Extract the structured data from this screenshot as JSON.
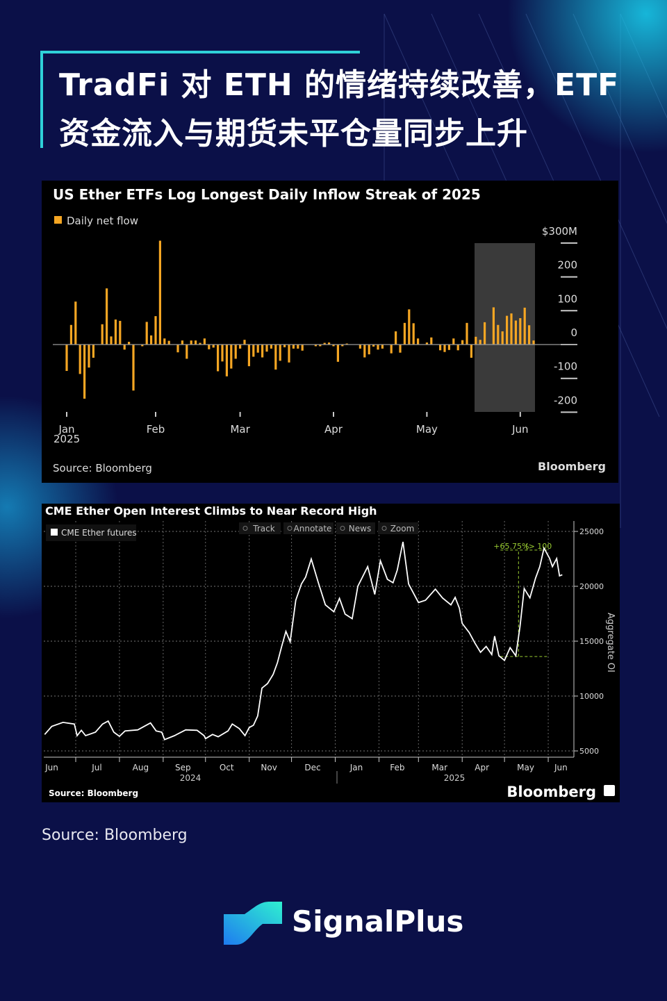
{
  "title": {
    "line1": "TradFi 对 ETH 的情绪持续改善，ETF",
    "line2": "资金流入与期货未平仓量同步上升"
  },
  "colors": {
    "background": "#0b1048",
    "accent": "#2fd1d8",
    "bar": "#f5a623",
    "line": "#ffffff",
    "annotation": "#9acd32",
    "highlight": "#3a3a3a"
  },
  "chart_data": [
    {
      "type": "bar",
      "title": "US Ether ETFs Log Longest Daily Inflow Streak of 2025",
      "legend": "Daily net flow",
      "unit_label": "$300M",
      "y_ticks": [
        "$300M",
        "200",
        "100",
        "0",
        "-100",
        "-200"
      ],
      "ylim": [
        -200,
        300
      ],
      "x_ticks": [
        "Jan",
        "Feb",
        "Mar",
        "Apr",
        "May",
        "Jun"
      ],
      "x_year": "2025",
      "values": [
        -78,
        58,
        127,
        -87,
        -160,
        -68,
        -39,
        1,
        60,
        166,
        24,
        74,
        70,
        -15,
        8,
        -136,
        0,
        -5,
        67,
        27,
        84,
        307,
        18,
        11,
        0,
        -23,
        12,
        -42,
        12,
        12,
        5,
        18,
        -14,
        -9,
        -79,
        -50,
        -94,
        -71,
        -42,
        -12,
        14,
        -64,
        -36,
        -24,
        -38,
        -21,
        -12,
        -74,
        -48,
        -8,
        -53,
        -12,
        -12,
        -18,
        0,
        0,
        -5,
        -5,
        5,
        6,
        -5,
        -51,
        -5,
        3,
        -1,
        0,
        -12,
        -38,
        -29,
        -6,
        -15,
        -12,
        0,
        -26,
        39,
        -24,
        64,
        104,
        63,
        18,
        0,
        6,
        21,
        0,
        -17,
        -22,
        -16,
        18,
        -17,
        13,
        64,
        -39,
        23,
        14,
        66,
        0,
        110,
        58,
        39,
        85,
        92,
        71,
        78,
        109,
        57,
        12
      ],
      "highlight": "longest daily inflow streak (final bars, late May – early June 2025)",
      "source": "Source: Bloomberg",
      "brand": "Bloomberg"
    },
    {
      "type": "line",
      "title": "CME Ether Open Interest Climbs to Near Record High",
      "legend": "CME Ether futures",
      "ylabel": "Aggregate OI",
      "ylim": [
        4000,
        26000
      ],
      "y_ticks": [
        "25000",
        "20000",
        "15000",
        "10000",
        "5000"
      ],
      "x_ticks": [
        "Jun",
        "Jul",
        "Aug",
        "Sep",
        "Oct",
        "Nov",
        "Dec",
        "Jan",
        "Feb",
        "Mar",
        "Apr",
        "May",
        "Jun"
      ],
      "x_years": [
        "2024",
        "2025"
      ],
      "grid": true,
      "points": [
        [
          "2024-06-09",
          6500
        ],
        [
          "2024-06-14",
          7240
        ],
        [
          "2024-06-22",
          7600
        ],
        [
          "2024-06-30",
          7450
        ],
        [
          "2024-07-02",
          6390
        ],
        [
          "2024-07-05",
          6880
        ],
        [
          "2024-07-08",
          6390
        ],
        [
          "2024-07-15",
          6710
        ],
        [
          "2024-07-20",
          7450
        ],
        [
          "2024-07-24",
          7720
        ],
        [
          "2024-07-28",
          6710
        ],
        [
          "2024-08-01",
          6330
        ],
        [
          "2024-08-05",
          6820
        ],
        [
          "2024-08-14",
          6920
        ],
        [
          "2024-08-23",
          7550
        ],
        [
          "2024-08-27",
          6820
        ],
        [
          "2024-08-31",
          6710
        ],
        [
          "2024-09-02",
          6030
        ],
        [
          "2024-09-09",
          6390
        ],
        [
          "2024-09-17",
          6920
        ],
        [
          "2024-09-25",
          6880
        ],
        [
          "2024-09-30",
          6390
        ],
        [
          "2024-10-01",
          6120
        ],
        [
          "2024-10-06",
          6500
        ],
        [
          "2024-10-10",
          6290
        ],
        [
          "2024-10-17",
          6820
        ],
        [
          "2024-10-20",
          7450
        ],
        [
          "2024-10-25",
          7030
        ],
        [
          "2024-10-29",
          6390
        ],
        [
          "2024-11-01",
          7130
        ],
        [
          "2024-11-04",
          7340
        ],
        [
          "2024-11-07",
          8190
        ],
        [
          "2024-11-10",
          10720
        ],
        [
          "2024-11-14",
          11140
        ],
        [
          "2024-11-18",
          11980
        ],
        [
          "2024-11-21",
          13040
        ],
        [
          "2024-11-24",
          14520
        ],
        [
          "2024-11-27",
          15890
        ],
        [
          "2024-11-30",
          14940
        ],
        [
          "2024-12-04",
          18730
        ],
        [
          "2024-12-08",
          20210
        ],
        [
          "2024-12-11",
          20840
        ],
        [
          "2024-12-15",
          22490
        ],
        [
          "2024-12-20",
          20320
        ],
        [
          "2024-12-25",
          18310
        ],
        [
          "2024-12-31",
          17680
        ],
        [
          "2025-01-04",
          18900
        ],
        [
          "2025-01-08",
          17470
        ],
        [
          "2025-01-13",
          17050
        ],
        [
          "2025-01-17",
          20000
        ],
        [
          "2025-01-24",
          21790
        ],
        [
          "2025-01-29",
          19260
        ],
        [
          "2025-02-02",
          22320
        ],
        [
          "2025-02-07",
          20630
        ],
        [
          "2025-02-11",
          20320
        ],
        [
          "2025-02-14",
          21480
        ],
        [
          "2025-02-18",
          24050
        ],
        [
          "2025-02-22",
          20210
        ],
        [
          "2025-03-01",
          18520
        ],
        [
          "2025-03-06",
          18730
        ],
        [
          "2025-03-13",
          19740
        ],
        [
          "2025-03-18",
          18940
        ],
        [
          "2025-03-24",
          18310
        ],
        [
          "2025-03-27",
          18990
        ],
        [
          "2025-03-30",
          18000
        ],
        [
          "2025-04-01",
          16620
        ],
        [
          "2025-04-06",
          15780
        ],
        [
          "2025-04-10",
          14830
        ],
        [
          "2025-04-14",
          13990
        ],
        [
          "2025-04-18",
          14520
        ],
        [
          "2025-04-22",
          13780
        ],
        [
          "2025-04-24",
          15460
        ],
        [
          "2025-04-27",
          13670
        ],
        [
          "2025-05-01",
          13250
        ],
        [
          "2025-05-05",
          14410
        ],
        [
          "2025-05-09",
          13670
        ],
        [
          "2025-05-12",
          16310
        ],
        [
          "2025-05-15",
          19790
        ],
        [
          "2025-05-19",
          18940
        ],
        [
          "2025-05-23",
          20740
        ],
        [
          "2025-05-26",
          21790
        ],
        [
          "2025-05-29",
          23480
        ],
        [
          "2025-06-02",
          22530
        ],
        [
          "2025-06-04",
          21790
        ],
        [
          "2025-06-07",
          22530
        ],
        [
          "2025-06-09",
          20950
        ],
        [
          "2025-06-11",
          21050
        ]
      ],
      "annotation": {
        "text": "+65.75%",
        "extra": "(> 100",
        "from": [
          "2025-05-07",
          13600
        ],
        "to": [
          "2025-05-27",
          23300
        ]
      },
      "toolbar": [
        "Track",
        "Annotate",
        "News",
        "Zoom"
      ],
      "source": "Source: Bloomberg",
      "brand": "Bloomberg"
    }
  ],
  "footer": {
    "source": "Source: Bloomberg",
    "brand": "SignalPlus"
  }
}
